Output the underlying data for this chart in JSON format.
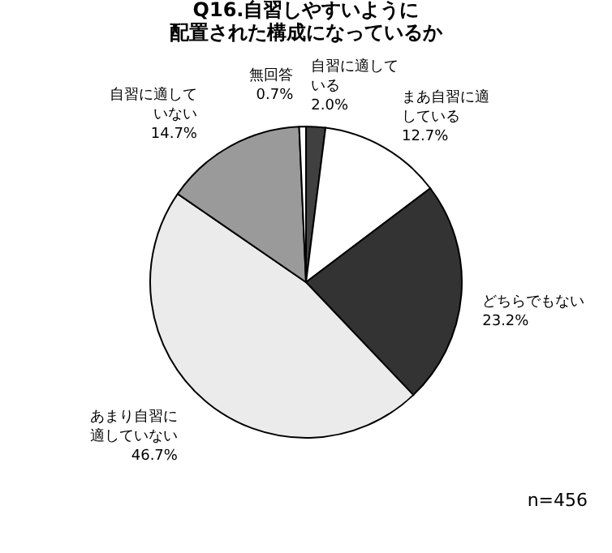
{
  "chart_data": {
    "type": "pie",
    "title": "Q16.自習しやすいように配置された構成になっているか",
    "categories": [
      "自習に適している",
      "まあ自習に適している",
      "どちらでもない",
      "あまり自習に適していない",
      "自習に適していない",
      "無回答"
    ],
    "values": [
      2.0,
      12.7,
      23.2,
      46.7,
      14.7,
      0.7
    ],
    "colors": [
      "#404040",
      "#ffffff",
      "#333333",
      "#ebebeb",
      "#9a9a9a",
      "#ffffff"
    ],
    "value_labels": [
      "2.0%",
      "12.7%",
      "23.2%",
      "46.7%",
      "14.7%",
      "0.7%"
    ],
    "legend": false,
    "annotations": [
      "n=456"
    ]
  }
}
